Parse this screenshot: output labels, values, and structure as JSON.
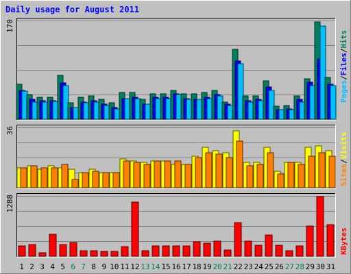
{
  "title": "Daily usage for August 2011",
  "colors": {
    "background": "#C0C0C0",
    "title_text": "#0000FF",
    "hits": "#00805C",
    "files": "#0000FF",
    "pages": "#00C0FF",
    "visits": "#FFFF00",
    "sites": "#FF8000",
    "kbytes": "#FF0000",
    "weekend_label": "#00805C"
  },
  "legend": {
    "hits": "Hits",
    "files": "Files",
    "pages": "Pages",
    "visits": "Visits",
    "sites": "Sites",
    "kbytes": "KBytes",
    "separator": "/"
  },
  "chart_data": {
    "type": "bar",
    "title": "Daily usage for August 2011",
    "categories": [
      "1",
      "2",
      "3",
      "4",
      "5",
      "6",
      "7",
      "8",
      "9",
      "10",
      "11",
      "12",
      "13",
      "14",
      "15",
      "16",
      "17",
      "18",
      "19",
      "20",
      "21",
      "22",
      "23",
      "24",
      "25",
      "26",
      "27",
      "28",
      "29",
      "30",
      "31"
    ],
    "weekend_days": [
      "6",
      "7",
      "13",
      "14",
      "20",
      "21",
      "27",
      "28"
    ],
    "panels": [
      {
        "id": "hits-files-pages",
        "max_label": "170",
        "ylim": [
          0,
          170
        ],
        "series": [
          {
            "name": "Hits",
            "values": [
              60,
              42,
              38,
              38,
              75,
              28,
              38,
              40,
              34,
              28,
              46,
              46,
              34,
              44,
              44,
              50,
              44,
              44,
              46,
              50,
              30,
              120,
              40,
              40,
              66,
              22,
              24,
              40,
              70,
              168,
              72
            ]
          },
          {
            "name": "Files",
            "values": [
              50,
              34,
              32,
              32,
              62,
              20,
              30,
              32,
              26,
              20,
              36,
              38,
              26,
              38,
              38,
              44,
              36,
              34,
              38,
              42,
              26,
              100,
              32,
              34,
              56,
              16,
              18,
              34,
              64,
              104,
              60
            ]
          },
          {
            "name": "Pages",
            "values": [
              48,
              30,
              30,
              31,
              58,
              20,
              28,
              30,
              24,
              18,
              36,
              36,
              26,
              36,
              36,
              42,
              34,
              34,
              36,
              40,
              24,
              96,
              30,
              32,
              50,
              16,
              16,
              30,
              58,
              160,
              58
            ]
          }
        ]
      },
      {
        "id": "visits-sites",
        "max_label": "36",
        "ylim": [
          0,
          36
        ],
        "series": [
          {
            "name": "Visits",
            "values": [
              12,
              13,
              11,
              13,
              12,
              11,
              9,
              11,
              9,
              9,
              17,
              16,
              15,
              16,
              16,
              14,
              14,
              19,
              24,
              22,
              21,
              34,
              15,
              15,
              24,
              10,
              15,
              15,
              24,
              25,
              22
            ]
          },
          {
            "name": "Sites",
            "values": [
              12,
              13,
              12,
              12,
              14,
              5,
              9,
              10,
              9,
              9,
              16,
              15,
              14,
              16,
              16,
              16,
              14,
              18,
              21,
              20,
              18,
              28,
              13,
              14,
              21,
              8,
              15,
              14,
              19,
              21,
              19
            ]
          }
        ]
      },
      {
        "id": "kbytes",
        "max_label": "1288",
        "ylim": [
          0,
          1288
        ],
        "series": [
          {
            "name": "KBytes",
            "values": [
              222,
              252,
              80,
              470,
              250,
              300,
              112,
              115,
              100,
              105,
              212,
              1160,
              112,
              225,
              225,
              225,
              214,
              312,
              275,
              325,
              132,
              720,
              325,
              235,
              450,
              235,
              112,
              225,
              640,
              1280,
              680
            ]
          }
        ]
      }
    ]
  }
}
